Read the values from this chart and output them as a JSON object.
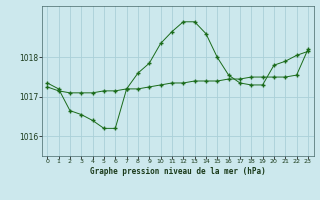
{
  "title": "Graphe pression niveau de la mer (hPa)",
  "background_color": "#cce8ed",
  "plot_bg_color": "#cce8ed",
  "grid_color": "#aad0d8",
  "line_color": "#1a6b1a",
  "marker_color": "#1a6b1a",
  "xlim": [
    -0.5,
    23.5
  ],
  "ylim": [
    1015.5,
    1019.3
  ],
  "yticks": [
    1016,
    1017,
    1018
  ],
  "xticks": [
    0,
    1,
    2,
    3,
    4,
    5,
    6,
    7,
    8,
    9,
    10,
    11,
    12,
    13,
    14,
    15,
    16,
    17,
    18,
    19,
    20,
    21,
    22,
    23
  ],
  "series1_x": [
    0,
    1,
    2,
    3,
    4,
    5,
    6,
    7,
    8,
    9,
    10,
    11,
    12,
    13,
    14,
    15,
    16,
    17,
    18,
    19,
    20,
    21,
    22,
    23
  ],
  "series1_y": [
    1017.25,
    1017.15,
    1017.1,
    1017.1,
    1017.1,
    1017.15,
    1017.15,
    1017.2,
    1017.2,
    1017.25,
    1017.3,
    1017.35,
    1017.35,
    1017.4,
    1017.4,
    1017.4,
    1017.45,
    1017.45,
    1017.5,
    1017.5,
    1017.5,
    1017.5,
    1017.55,
    1018.2
  ],
  "series2_x": [
    0,
    1,
    2,
    3,
    4,
    5,
    6,
    7,
    8,
    9,
    10,
    11,
    12,
    13,
    14,
    15,
    16,
    17,
    18,
    19,
    20,
    21,
    22,
    23
  ],
  "series2_y": [
    1017.35,
    1017.2,
    1016.65,
    1016.55,
    1016.4,
    1016.2,
    1016.2,
    1017.2,
    1017.6,
    1017.85,
    1018.35,
    1018.65,
    1018.9,
    1018.9,
    1018.6,
    1018.0,
    1017.55,
    1017.35,
    1017.3,
    1017.3,
    1017.8,
    1017.9,
    1018.05,
    1018.15
  ]
}
